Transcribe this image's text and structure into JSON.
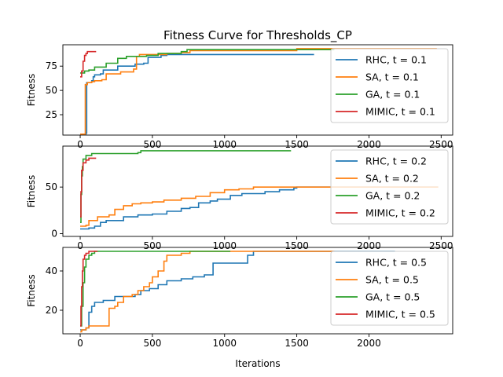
{
  "title": "Fitness Curve for Thresholds_CP",
  "xlabel": "Iterations",
  "colors": {
    "RHC": "#1f77b4",
    "SA": "#ff7f0e",
    "GA": "#2ca02c",
    "MIMIC": "#d62728"
  },
  "chart_data": [
    {
      "type": "line",
      "ylabel": "Fitness",
      "xlim": [
        -120,
        2580
      ],
      "ylim": [
        4,
        97
      ],
      "xticks": [
        0,
        500,
        1000,
        1500,
        2000,
        2500
      ],
      "yticks": [
        25,
        50,
        75
      ],
      "legend_position": "right",
      "series": [
        {
          "name": "RHC, t = 0.1",
          "color": "#1f77b4",
          "points": [
            [
              0,
              5
            ],
            [
              40,
              6
            ],
            [
              45,
              58
            ],
            [
              80,
              60
            ],
            [
              90,
              64
            ],
            [
              100,
              66
            ],
            [
              140,
              67
            ],
            [
              160,
              71
            ],
            [
              240,
              71
            ],
            [
              260,
              75
            ],
            [
              360,
              75
            ],
            [
              380,
              77
            ],
            [
              440,
              78
            ],
            [
              470,
              84
            ],
            [
              560,
              86
            ],
            [
              600,
              87
            ],
            [
              1620,
              87
            ]
          ]
        },
        {
          "name": "SA, t = 0.1",
          "color": "#ff7f0e",
          "points": [
            [
              0,
              5
            ],
            [
              30,
              5
            ],
            [
              35,
              56
            ],
            [
              50,
              58
            ],
            [
              80,
              59
            ],
            [
              100,
              60
            ],
            [
              150,
              61
            ],
            [
              180,
              67
            ],
            [
              280,
              69
            ],
            [
              370,
              72
            ],
            [
              390,
              85
            ],
            [
              410,
              87
            ],
            [
              600,
              88
            ],
            [
              700,
              89
            ],
            [
              760,
              91
            ],
            [
              1480,
              91
            ],
            [
              1500,
              93
            ],
            [
              2470,
              93
            ]
          ]
        },
        {
          "name": "GA, t = 0.1",
          "color": "#2ca02c",
          "points": [
            [
              0,
              68
            ],
            [
              30,
              70
            ],
            [
              60,
              71
            ],
            [
              100,
              74
            ],
            [
              180,
              78
            ],
            [
              260,
              83
            ],
            [
              320,
              85
            ],
            [
              460,
              86
            ],
            [
              540,
              88
            ],
            [
              640,
              88
            ],
            [
              700,
              90
            ],
            [
              740,
              92
            ],
            [
              1760,
              92
            ]
          ]
        },
        {
          "name": "MIMIC, t = 0.1",
          "color": "#d62728",
          "points": [
            [
              0,
              64
            ],
            [
              10,
              70
            ],
            [
              20,
              80
            ],
            [
              30,
              86
            ],
            [
              40,
              88
            ],
            [
              50,
              90
            ],
            [
              110,
              90
            ]
          ]
        }
      ]
    },
    {
      "type": "line",
      "ylabel": "Fitness",
      "xlim": [
        -120,
        2580
      ],
      "ylim": [
        -3,
        94
      ],
      "xticks": [
        0,
        500,
        1000,
        1500,
        2000,
        2500
      ],
      "yticks": [
        0,
        50
      ],
      "legend_position": "right",
      "series": [
        {
          "name": "RHC, t = 0.2",
          "color": "#1f77b4",
          "points": [
            [
              0,
              5
            ],
            [
              60,
              6
            ],
            [
              100,
              8
            ],
            [
              140,
              12
            ],
            [
              180,
              14
            ],
            [
              300,
              18
            ],
            [
              400,
              20
            ],
            [
              500,
              21
            ],
            [
              600,
              24
            ],
            [
              700,
              27
            ],
            [
              760,
              28
            ],
            [
              820,
              33
            ],
            [
              900,
              35
            ],
            [
              950,
              37
            ],
            [
              1040,
              41
            ],
            [
              1120,
              43
            ],
            [
              1280,
              45
            ],
            [
              1380,
              47
            ],
            [
              1480,
              49
            ],
            [
              1500,
              50
            ],
            [
              2480,
              50
            ]
          ]
        },
        {
          "name": "SA, t = 0.2",
          "color": "#ff7f0e",
          "points": [
            [
              0,
              8
            ],
            [
              40,
              9
            ],
            [
              60,
              14
            ],
            [
              120,
              18
            ],
            [
              200,
              20
            ],
            [
              240,
              26
            ],
            [
              300,
              30
            ],
            [
              360,
              32
            ],
            [
              420,
              33
            ],
            [
              500,
              34
            ],
            [
              580,
              36
            ],
            [
              700,
              38
            ],
            [
              800,
              40
            ],
            [
              900,
              44
            ],
            [
              1000,
              47
            ],
            [
              1100,
              48
            ],
            [
              1200,
              50
            ],
            [
              1500,
              50
            ],
            [
              2480,
              50
            ]
          ]
        },
        {
          "name": "GA, t = 0.2",
          "color": "#2ca02c",
          "points": [
            [
              0,
              12
            ],
            [
              5,
              42
            ],
            [
              10,
              62
            ],
            [
              15,
              72
            ],
            [
              20,
              80
            ],
            [
              40,
              84
            ],
            [
              80,
              86
            ],
            [
              400,
              87
            ],
            [
              420,
              89
            ],
            [
              1460,
              89
            ]
          ]
        },
        {
          "name": "MIMIC, t = 0.2",
          "color": "#d62728",
          "points": [
            [
              0,
              18
            ],
            [
              5,
              45
            ],
            [
              10,
              68
            ],
            [
              20,
              76
            ],
            [
              40,
              79
            ],
            [
              60,
              81
            ],
            [
              110,
              81
            ]
          ]
        }
      ]
    },
    {
      "type": "line",
      "ylabel": "Fitness",
      "xlim": [
        -120,
        2580
      ],
      "ylim": [
        8,
        52
      ],
      "xticks": [
        0,
        500,
        1000,
        1500,
        2000
      ],
      "yticks": [
        20,
        40
      ],
      "legend_position": "right",
      "series": [
        {
          "name": "RHC, t = 0.5",
          "color": "#1f77b4",
          "points": [
            [
              0,
              10
            ],
            [
              40,
              11
            ],
            [
              60,
              19
            ],
            [
              80,
              22
            ],
            [
              100,
              24
            ],
            [
              160,
              25
            ],
            [
              240,
              27
            ],
            [
              380,
              28
            ],
            [
              420,
              30
            ],
            [
              480,
              31
            ],
            [
              540,
              33
            ],
            [
              600,
              35
            ],
            [
              700,
              36
            ],
            [
              780,
              37
            ],
            [
              860,
              38
            ],
            [
              920,
              44
            ],
            [
              1130,
              44
            ],
            [
              1160,
              48
            ],
            [
              1200,
              50
            ],
            [
              2180,
              50
            ]
          ]
        },
        {
          "name": "SA, t = 0.5",
          "color": "#ff7f0e",
          "points": [
            [
              0,
              9
            ],
            [
              10,
              10
            ],
            [
              40,
              11
            ],
            [
              60,
              12
            ],
            [
              180,
              12
            ],
            [
              200,
              21
            ],
            [
              240,
              22
            ],
            [
              260,
              24
            ],
            [
              300,
              27
            ],
            [
              360,
              28
            ],
            [
              400,
              30
            ],
            [
              440,
              32
            ],
            [
              480,
              34
            ],
            [
              500,
              37
            ],
            [
              540,
              40
            ],
            [
              580,
              45
            ],
            [
              600,
              48
            ],
            [
              700,
              49
            ],
            [
              760,
              50
            ],
            [
              1760,
              50
            ]
          ]
        },
        {
          "name": "GA, t = 0.5",
          "color": "#2ca02c",
          "points": [
            [
              0,
              12
            ],
            [
              10,
              22
            ],
            [
              20,
              34
            ],
            [
              30,
              42
            ],
            [
              40,
              46
            ],
            [
              60,
              48
            ],
            [
              80,
              49
            ],
            [
              100,
              50
            ],
            [
              1040,
              50
            ]
          ]
        },
        {
          "name": "MIMIC, t = 0.5",
          "color": "#d62728",
          "points": [
            [
              0,
              12
            ],
            [
              5,
              22
            ],
            [
              10,
              32
            ],
            [
              15,
              40
            ],
            [
              20,
              46
            ],
            [
              30,
              48
            ],
            [
              40,
              49
            ],
            [
              60,
              50
            ],
            [
              120,
              50
            ]
          ]
        }
      ]
    }
  ]
}
